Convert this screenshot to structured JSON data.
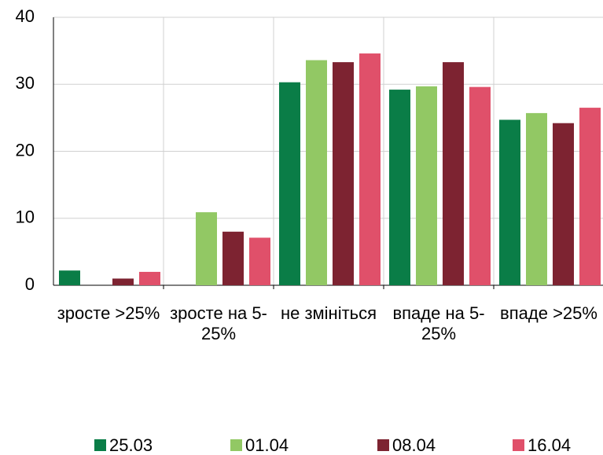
{
  "chart_data": {
    "type": "bar",
    "categories": [
      "зросте >25%",
      "зросте на 5-25%",
      "не змініться",
      "впаде на 5-25%",
      "впаде >25%"
    ],
    "series": [
      {
        "name": "25.03",
        "color": "#0a7d47",
        "values": [
          2.2,
          0,
          30.3,
          29.2,
          24.7
        ]
      },
      {
        "name": "01.04",
        "color": "#92c864",
        "values": [
          0,
          10.9,
          33.6,
          29.7,
          25.7
        ]
      },
      {
        "name": "08.04",
        "color": "#7d2331",
        "values": [
          1.0,
          8.0,
          33.3,
          33.3,
          24.2
        ]
      },
      {
        "name": "16.04",
        "color": "#e0506a",
        "values": [
          2.0,
          7.1,
          34.6,
          29.6,
          26.5
        ]
      }
    ],
    "ylim": [
      0,
      40
    ],
    "yticks": [
      0,
      10,
      20,
      30,
      40
    ],
    "grid": true,
    "legend": "bottom"
  }
}
